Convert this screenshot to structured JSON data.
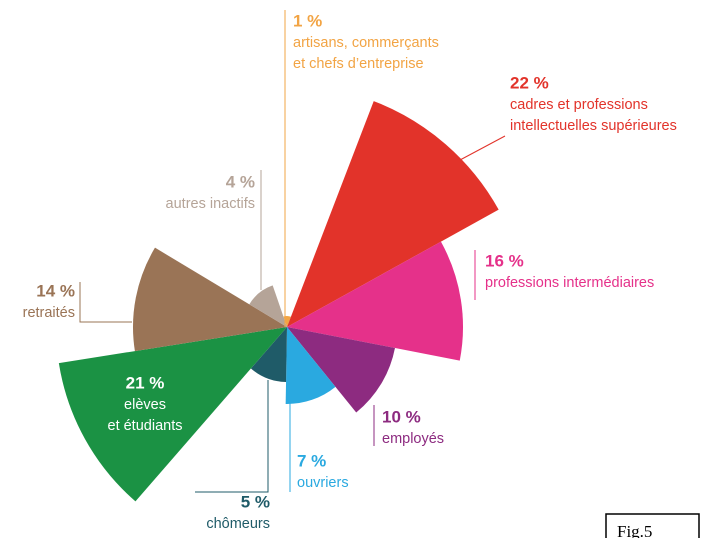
{
  "chart_data": {
    "type": "polar_area",
    "categories": [
      [
        "artisans, commerçants",
        "et chefs d’entreprise"
      ],
      [
        "cadres et professions",
        "intellectuelles supérieures"
      ],
      [
        "professions intermédiaires"
      ],
      [
        "employés"
      ],
      [
        "ouvriers"
      ],
      [
        "chômeurs"
      ],
      [
        "elèves",
        "et étudiants"
      ],
      [
        "retraités"
      ],
      [
        "autres inactifs"
      ]
    ],
    "values": [
      1,
      22,
      16,
      10,
      7,
      5,
      21,
      14,
      4
    ],
    "value_labels": [
      "1 %",
      "22 %",
      "16 %",
      "10 %",
      "7 %",
      "5 %",
      "21 %",
      "14 %",
      "4 %"
    ],
    "colors": [
      "#f2a444",
      "#e2332a",
      "#e5318a",
      "#8d2b80",
      "#2aa9e0",
      "#1f5b68",
      "#1b9244",
      "#9a7456",
      "#b5a498"
    ]
  },
  "figure_label": "Fig.5"
}
